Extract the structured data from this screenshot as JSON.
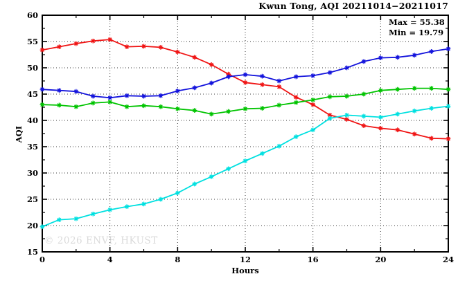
{
  "header": {
    "title": "Kwun Tong, AQI 20211014−20211017"
  },
  "annotation": {
    "max_label": "Max = 55.38",
    "min_label": "Min = 19.79"
  },
  "watermark": "© 2026 ENVF, HKUST",
  "chart_data": {
    "type": "line",
    "title": "Kwun Tong, AQI 20211014−20211017",
    "xlabel": "Hours",
    "ylabel": "AQI",
    "xlim": [
      0,
      24
    ],
    "ylim": [
      15,
      60
    ],
    "xticks": [
      0,
      4,
      8,
      12,
      16,
      20,
      24
    ],
    "xminorticks": [
      2,
      6,
      10,
      14,
      18,
      22
    ],
    "yticks": [
      15,
      20,
      25,
      30,
      35,
      40,
      45,
      50,
      55,
      60
    ],
    "grid": true,
    "legend": "none",
    "annotations": {
      "max": 55.38,
      "min": 19.79
    },
    "marker": "star",
    "x": [
      0,
      1,
      2,
      3,
      4,
      5,
      6,
      7,
      8,
      9,
      10,
      11,
      12,
      13,
      14,
      15,
      16,
      17,
      18,
      19,
      20,
      21,
      22,
      23,
      24
    ],
    "series": [
      {
        "name": "red-series",
        "color": "#f01414",
        "values": [
          53.4,
          54.0,
          54.6,
          55.1,
          55.38,
          54.0,
          54.1,
          53.9,
          53.0,
          52.0,
          50.6,
          48.8,
          47.2,
          46.8,
          46.4,
          44.4,
          43.0,
          41.0,
          40.2,
          39.0,
          38.5,
          38.2,
          37.4,
          36.6,
          36.5
        ]
      },
      {
        "name": "blue-series",
        "color": "#1212dc",
        "values": [
          45.9,
          45.7,
          45.5,
          44.6,
          44.3,
          44.7,
          44.6,
          44.7,
          45.6,
          46.2,
          47.1,
          48.3,
          48.7,
          48.4,
          47.5,
          48.3,
          48.5,
          49.1,
          50.0,
          51.2,
          51.9,
          52.0,
          52.4,
          53.1,
          53.6
        ]
      },
      {
        "name": "green-series",
        "color": "#00c400",
        "values": [
          43.0,
          42.9,
          42.6,
          43.3,
          43.5,
          42.6,
          42.8,
          42.6,
          42.2,
          41.9,
          41.2,
          41.7,
          42.2,
          42.3,
          42.9,
          43.4,
          43.9,
          44.5,
          44.6,
          45.0,
          45.7,
          45.9,
          46.1,
          46.1,
          45.9
        ]
      },
      {
        "name": "cyan-series",
        "color": "#00e0e0",
        "values": [
          19.79,
          21.1,
          21.3,
          22.2,
          23.0,
          23.6,
          24.1,
          25.0,
          26.2,
          27.9,
          29.3,
          30.8,
          32.3,
          33.7,
          35.1,
          36.9,
          38.2,
          40.4,
          41.0,
          40.8,
          40.6,
          41.2,
          41.8,
          42.3,
          42.7
        ]
      }
    ]
  }
}
